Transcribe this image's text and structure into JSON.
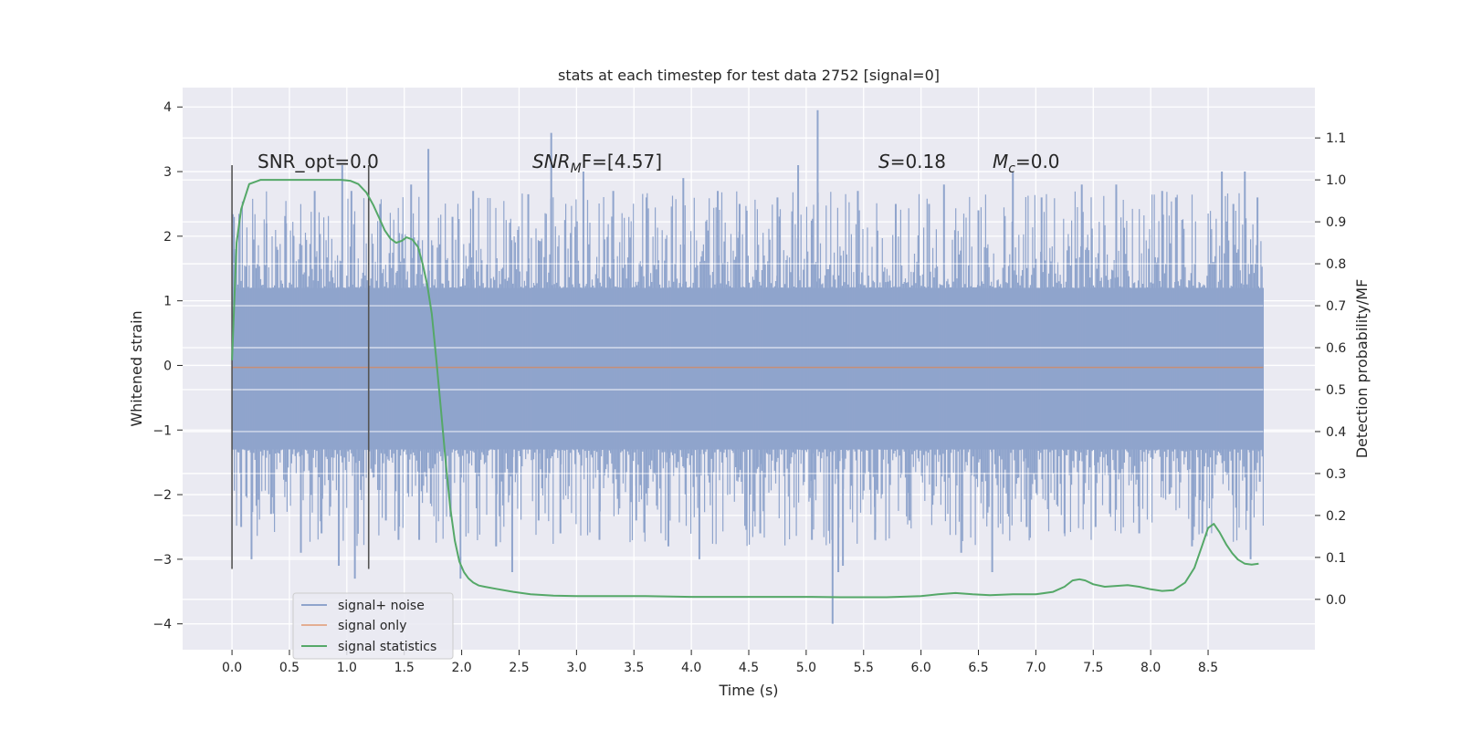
{
  "chart_data": {
    "type": "line",
    "title": "stats at each timestep for test data 2752 [signal=0]",
    "xlabel": "Time (s)",
    "ylabel": "Whitened strain",
    "y2label": "Detection probability/MF",
    "xlim": [
      -0.43,
      9.43
    ],
    "ylim": [
      -4.4,
      4.3
    ],
    "y2lim": [
      -0.12,
      1.22
    ],
    "x_ticks": [
      "0.0",
      "0.5",
      "1.0",
      "1.5",
      "2.0",
      "2.5",
      "3.0",
      "3.5",
      "4.0",
      "4.5",
      "5.0",
      "5.5",
      "6.0",
      "6.5",
      "7.0",
      "7.5",
      "8.0",
      "8.5"
    ],
    "y_ticks": [
      "4",
      "3",
      "2",
      "1",
      "0",
      "−1",
      "−2",
      "−3",
      "−4"
    ],
    "y2_ticks": [
      "1.1",
      "1.0",
      "0.9",
      "0.8",
      "0.7",
      "0.6",
      "0.5",
      "0.4",
      "0.3",
      "0.2",
      "0.1",
      "0.0"
    ],
    "grid": true,
    "legend_position": "lower-left",
    "vertical_markers_x": [
      0.0,
      1.19
    ],
    "annotations": {
      "snr_opt": "SNR_opt=0.0",
      "snr_mf_base": "SNR",
      "snr_mf_sub": "M",
      "snr_mf_rest": "F=[4.57]",
      "s_sym": "S",
      "s_val": "=0.18",
      "mc_sym": "M",
      "mc_sub": "c",
      "mc_val": "=0.0"
    },
    "series": [
      {
        "name": "signal+ noise",
        "color": "#8fa4cc",
        "x_range": [
          0.0,
          8.98
        ],
        "envelope_upper": 1.2,
        "envelope_lower": -1.3,
        "peaks": [
          [
            0.02,
            1.8
          ],
          [
            0.08,
            -2.5
          ],
          [
            0.17,
            -3.0
          ],
          [
            0.3,
            2.2
          ],
          [
            0.34,
            -2.3
          ],
          [
            0.47,
            2.2
          ],
          [
            0.6,
            -2.9
          ],
          [
            0.72,
            2.7
          ],
          [
            0.78,
            -2.6
          ],
          [
            0.93,
            -3.1
          ],
          [
            0.96,
            3.1
          ],
          [
            1.04,
            2.7
          ],
          [
            1.07,
            -3.3
          ],
          [
            1.29,
            2.5
          ],
          [
            1.34,
            -2.4
          ],
          [
            1.45,
            -2.7
          ],
          [
            1.56,
            2.8
          ],
          [
            1.63,
            -2.7
          ],
          [
            1.71,
            3.35
          ],
          [
            1.92,
            2.3
          ],
          [
            1.99,
            -3.3
          ],
          [
            2.1,
            2.7
          ],
          [
            2.3,
            -2.8
          ],
          [
            2.44,
            -3.2
          ],
          [
            2.58,
            2.65
          ],
          [
            2.67,
            -2.4
          ],
          [
            2.78,
            3.6
          ],
          [
            2.86,
            -2.6
          ],
          [
            3.06,
            3.0
          ],
          [
            3.2,
            -2.7
          ],
          [
            3.32,
            2.7
          ],
          [
            3.52,
            -2.4
          ],
          [
            3.61,
            2.6
          ],
          [
            3.8,
            -2.8
          ],
          [
            3.93,
            2.9
          ],
          [
            4.07,
            -3.0
          ],
          [
            4.23,
            2.7
          ],
          [
            4.42,
            2.5
          ],
          [
            4.6,
            -2.6
          ],
          [
            4.75,
            2.6
          ],
          [
            4.93,
            3.1
          ],
          [
            5.05,
            -2.7
          ],
          [
            5.1,
            3.95
          ],
          [
            5.23,
            -4.0
          ],
          [
            5.28,
            -3.2
          ],
          [
            5.32,
            -3.1
          ],
          [
            5.45,
            2.7
          ],
          [
            5.6,
            -2.7
          ],
          [
            5.78,
            2.5
          ],
          [
            5.9,
            -2.4
          ],
          [
            6.07,
            2.5
          ],
          [
            6.2,
            2.8
          ],
          [
            6.35,
            -2.9
          ],
          [
            6.5,
            2.4
          ],
          [
            6.62,
            -3.2
          ],
          [
            6.8,
            3.0
          ],
          [
            6.92,
            -2.5
          ],
          [
            7.05,
            2.6
          ],
          [
            7.25,
            -2.6
          ],
          [
            7.4,
            2.8
          ],
          [
            7.52,
            -2.5
          ],
          [
            7.7,
            2.8
          ],
          [
            7.9,
            -2.6
          ],
          [
            8.1,
            2.7
          ],
          [
            8.22,
            2.6
          ],
          [
            8.36,
            -2.8
          ],
          [
            8.45,
            -2.6
          ],
          [
            8.62,
            3.0
          ],
          [
            8.72,
            2.5
          ],
          [
            8.82,
            3.0
          ],
          [
            8.87,
            -3.0
          ],
          [
            8.93,
            2.6
          ],
          [
            8.95,
            -1.8
          ]
        ]
      },
      {
        "name": "signal only",
        "color": "#dd8452",
        "x": [
          0.0,
          8.98
        ],
        "y": [
          -0.03,
          -0.03
        ]
      },
      {
        "name": "signal statistics",
        "color": "#55a868",
        "axis": "right",
        "x": [
          0.0,
          0.04,
          0.08,
          0.15,
          0.25,
          0.4,
          0.6,
          0.8,
          0.95,
          1.03,
          1.1,
          1.17,
          1.23,
          1.28,
          1.33,
          1.38,
          1.43,
          1.48,
          1.52,
          1.57,
          1.62,
          1.66,
          1.7,
          1.74,
          1.78,
          1.82,
          1.86,
          1.9,
          1.94,
          1.98,
          2.02,
          2.06,
          2.1,
          2.15,
          2.2,
          2.3,
          2.45,
          2.6,
          2.8,
          3.0,
          3.3,
          3.6,
          4.0,
          4.5,
          5.0,
          5.3,
          5.7,
          6.0,
          6.15,
          6.3,
          6.45,
          6.6,
          6.8,
          7.0,
          7.15,
          7.25,
          7.32,
          7.38,
          7.43,
          7.5,
          7.6,
          7.7,
          7.8,
          7.9,
          8.0,
          8.1,
          8.2,
          8.3,
          8.38,
          8.45,
          8.5,
          8.55,
          8.6,
          8.66,
          8.71,
          8.76,
          8.82,
          8.88,
          8.94
        ],
        "y": [
          0.57,
          0.85,
          0.93,
          0.99,
          1.0,
          1.0,
          1.0,
          1.0,
          1.0,
          0.998,
          0.99,
          0.97,
          0.94,
          0.91,
          0.88,
          0.86,
          0.85,
          0.855,
          0.863,
          0.858,
          0.84,
          0.8,
          0.75,
          0.68,
          0.57,
          0.45,
          0.33,
          0.22,
          0.14,
          0.09,
          0.065,
          0.05,
          0.04,
          0.033,
          0.03,
          0.025,
          0.018,
          0.012,
          0.009,
          0.008,
          0.008,
          0.008,
          0.006,
          0.006,
          0.006,
          0.005,
          0.005,
          0.008,
          0.012,
          0.015,
          0.012,
          0.01,
          0.012,
          0.012,
          0.018,
          0.03,
          0.045,
          0.048,
          0.045,
          0.036,
          0.03,
          0.032,
          0.034,
          0.03,
          0.024,
          0.02,
          0.022,
          0.04,
          0.075,
          0.13,
          0.17,
          0.18,
          0.16,
          0.13,
          0.11,
          0.095,
          0.085,
          0.083,
          0.085
        ]
      }
    ]
  }
}
